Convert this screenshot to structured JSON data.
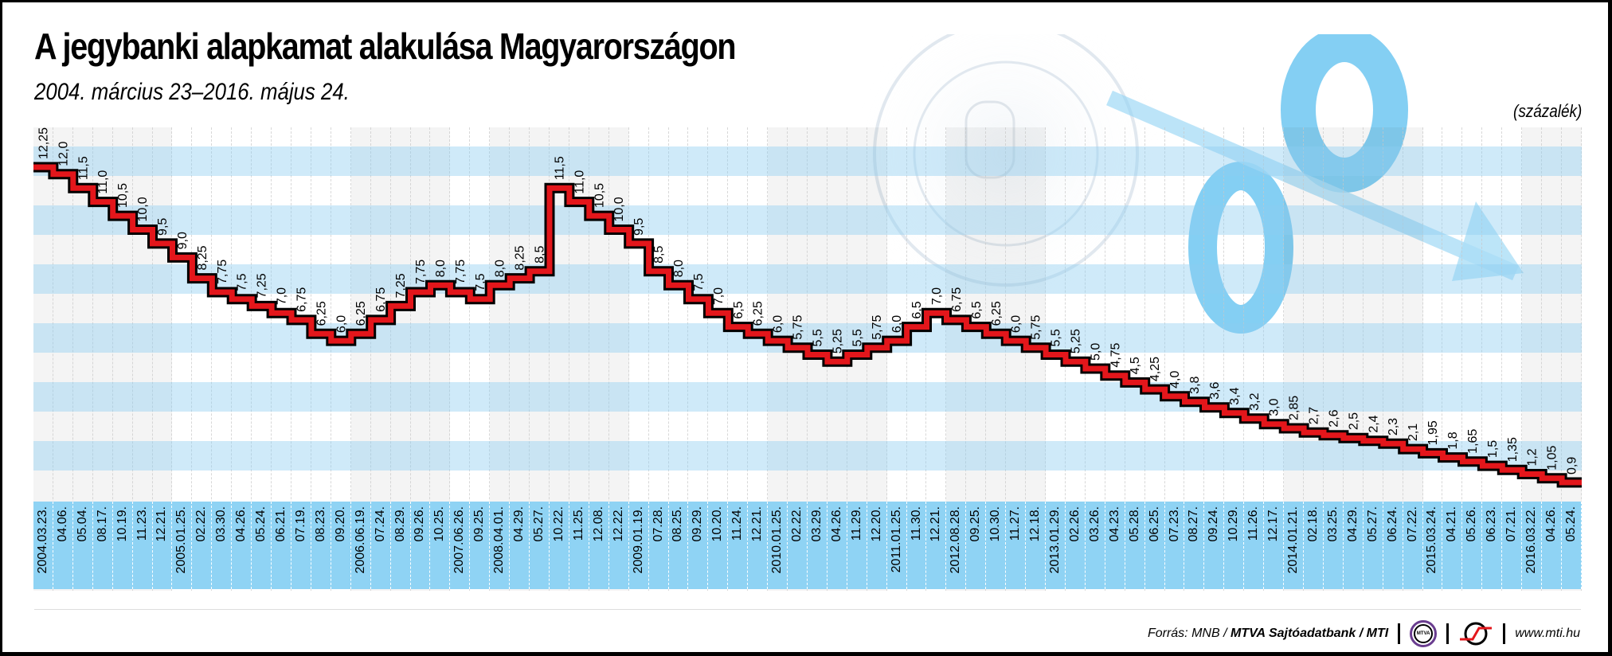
{
  "header": {
    "title": "A jegybanki alapkamat alakulása Magyarországon",
    "subtitle": "2004. március 23–2016. május 24.",
    "unit": "(százalék)"
  },
  "footer": {
    "source_prefix": "Forrás: MNB / ",
    "source_bold": "MTVA Sajtóadatbank / MTI",
    "logo1_text": "MTVA",
    "website": "www.mti.hu"
  },
  "colors": {
    "line_fill": "#e3161b",
    "line_outline": "#000000",
    "band_blue": "#cfeaf8",
    "date_bar": "#8fd3f4",
    "decor_blue": "#5bbfef"
  },
  "chart_data": {
    "type": "line",
    "step": true,
    "title": "A jegybanki alapkamat alakulása Magyarországon",
    "subtitle": "2004. március 23–2016. május 24.",
    "xlabel": "",
    "ylabel": "(százalék)",
    "ylim": [
      0,
      13
    ],
    "grid": true,
    "legend": "none",
    "categories": [
      "2004.03.23.",
      "04.06.",
      "05.04.",
      "08.17.",
      "10.19.",
      "11.23.",
      "12.21.",
      "2005.01.25.",
      "02.22.",
      "03.30.",
      "04.26.",
      "05.24.",
      "06.21.",
      "07.19.",
      "08.23.",
      "09.20.",
      "2006.06.19.",
      "07.24.",
      "08.29.",
      "09.26.",
      "10.25.",
      "2007.06.26.",
      "09.25.",
      "2008.04.01.",
      "04.29.",
      "05.27.",
      "10.22.",
      "11.25.",
      "12.08.",
      "12.22.",
      "2009.01.19.",
      "07.28.",
      "08.25.",
      "09.29.",
      "10.20.",
      "11.24.",
      "12.21.",
      "2010.01.25.",
      "02.22.",
      "03.29.",
      "04.26.",
      "11.29.",
      "12.20.",
      "2011.01.25.",
      "11.30.",
      "12.21.",
      "2012.08.28.",
      "09.25.",
      "10.30.",
      "11.27.",
      "12.18.",
      "2013.01.29.",
      "02.26.",
      "03.26.",
      "04.23.",
      "05.28.",
      "06.25.",
      "07.23.",
      "08.27.",
      "09.24.",
      "10.29.",
      "11.26.",
      "12.17.",
      "2014.01.21.",
      "02.18.",
      "03.25.",
      "04.29.",
      "05.27.",
      "06.24.",
      "07.22.",
      "2015.03.24.",
      "04.21.",
      "05.26.",
      "06.23.",
      "07.21.",
      "2016.03.22.",
      "04.26.",
      "05.24."
    ],
    "years": [
      2004,
      2004,
      2004,
      2004,
      2004,
      2004,
      2004,
      2005,
      2005,
      2005,
      2005,
      2005,
      2005,
      2005,
      2005,
      2005,
      2006,
      2006,
      2006,
      2006,
      2006,
      2007,
      2007,
      2008,
      2008,
      2008,
      2008,
      2008,
      2008,
      2008,
      2009,
      2009,
      2009,
      2009,
      2009,
      2009,
      2009,
      2010,
      2010,
      2010,
      2010,
      2010,
      2010,
      2011,
      2011,
      2011,
      2012,
      2012,
      2012,
      2012,
      2012,
      2013,
      2013,
      2013,
      2013,
      2013,
      2013,
      2013,
      2013,
      2013,
      2013,
      2013,
      2013,
      2014,
      2014,
      2014,
      2014,
      2014,
      2014,
      2014,
      2015,
      2015,
      2015,
      2015,
      2015,
      2016,
      2016,
      2016
    ],
    "values": [
      12.25,
      12.0,
      11.5,
      11.0,
      10.5,
      10.0,
      9.5,
      9.0,
      8.25,
      7.75,
      7.5,
      7.25,
      7.0,
      6.75,
      6.25,
      6.0,
      6.25,
      6.75,
      7.25,
      7.75,
      8.0,
      7.75,
      7.5,
      8.0,
      8.25,
      8.5,
      11.5,
      11.0,
      10.5,
      10.0,
      9.5,
      8.5,
      8.0,
      7.5,
      7.0,
      6.5,
      6.25,
      6.0,
      5.75,
      5.5,
      5.25,
      5.5,
      5.75,
      6.0,
      6.5,
      7.0,
      6.75,
      6.5,
      6.25,
      6.0,
      5.75,
      5.5,
      5.25,
      5.0,
      4.75,
      4.5,
      4.25,
      4.0,
      3.8,
      3.6,
      3.4,
      3.2,
      3.0,
      2.85,
      2.7,
      2.6,
      2.5,
      2.4,
      2.3,
      2.1,
      1.95,
      1.8,
      1.65,
      1.5,
      1.35,
      1.2,
      1.05,
      0.9
    ],
    "value_labels": [
      "12,25",
      "12,0",
      "11,5",
      "11,0",
      "10,5",
      "10,0",
      "9,5",
      "9,0",
      "8,25",
      "7,75",
      "7,5",
      "7,25",
      "7,0",
      "6,75",
      "6,25",
      "6,0",
      "6,25",
      "6,75",
      "7,25",
      "7,75",
      "8,0",
      "7,75",
      "7,5",
      "8,0",
      "8,25",
      "8,5",
      "11,5",
      "11,0",
      "10,5",
      "10,0",
      "9,5",
      "8,5",
      "8,0",
      "7,5",
      "7,0",
      "6,5",
      "6,25",
      "6,0",
      "5,75",
      "5,5",
      "5,25",
      "5,5",
      "5,75",
      "6,0",
      "6,5",
      "7,0",
      "6,75",
      "6,5",
      "6,25",
      "6,0",
      "5,75",
      "5,5",
      "5,25",
      "5,0",
      "4,75",
      "4,5",
      "4,25",
      "4,0",
      "3,8",
      "3,6",
      "3,4",
      "3,2",
      "3,0",
      "2,85",
      "2,7",
      "2,6",
      "2,5",
      "2,4",
      "2,3",
      "2,1",
      "1,95",
      "1,8",
      "1,65",
      "1,5",
      "1,35",
      "1,2",
      "1,05",
      "0,9"
    ]
  }
}
